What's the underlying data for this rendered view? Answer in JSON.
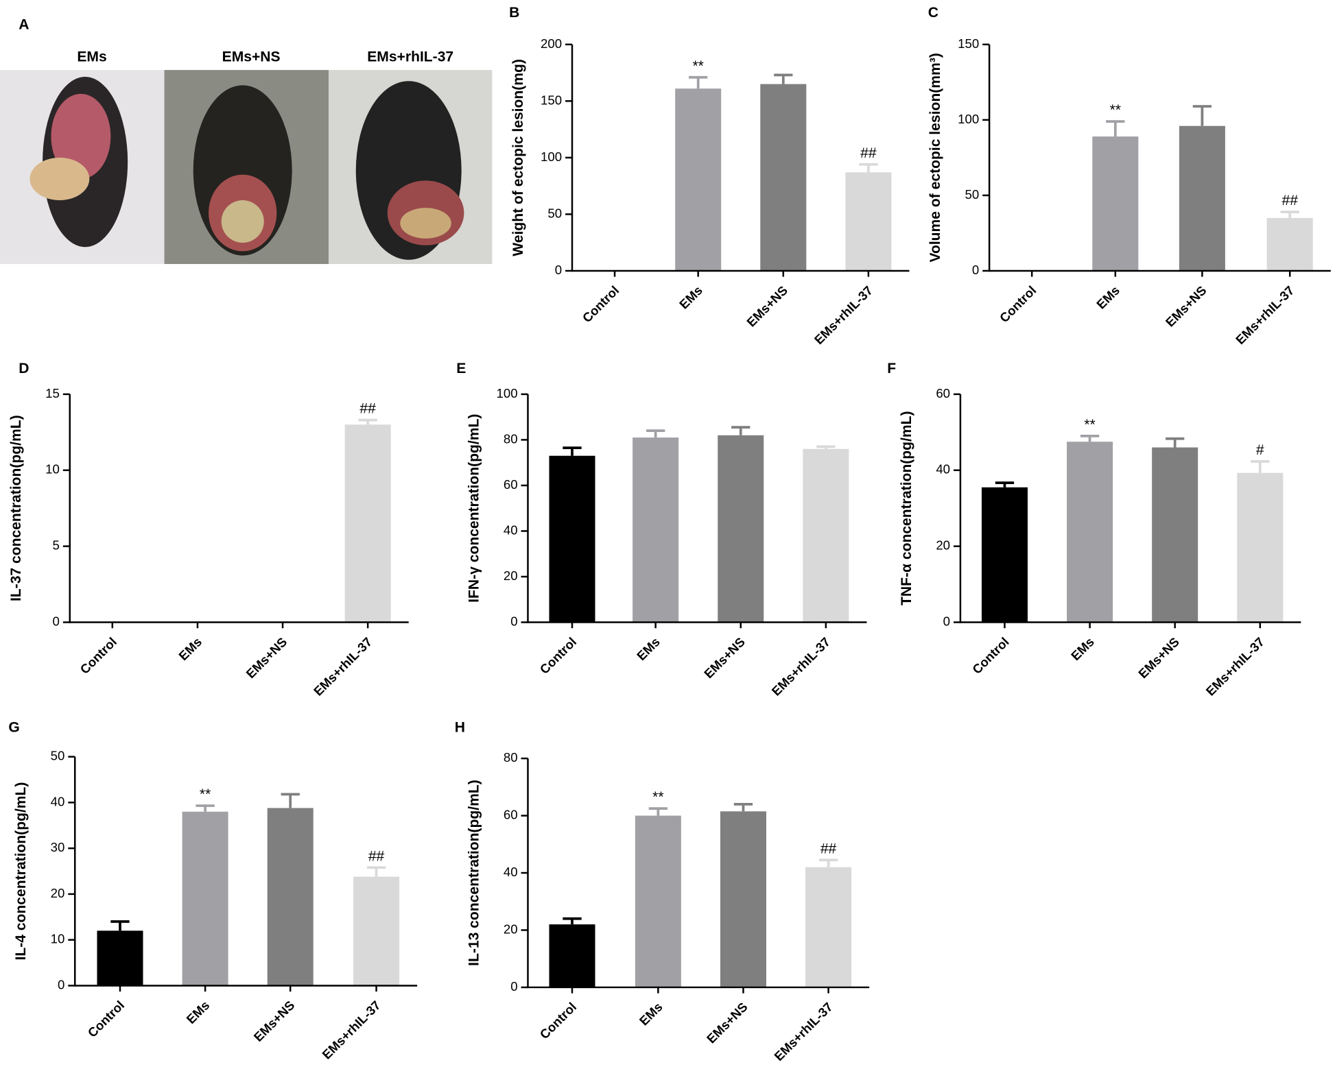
{
  "panel_a": {
    "label": "A",
    "captions": [
      "EMs",
      "EMs+NS",
      "EMs+rhIL-37"
    ]
  },
  "chart_data": [
    {
      "type": "bar",
      "panel": "B",
      "ylabel": "Weight of ectopic lesion(mg)",
      "categories": [
        "Control",
        "EMs",
        "EMs+NS",
        "EMs+rhIL-37"
      ],
      "values": [
        0,
        161,
        165,
        87
      ],
      "errors": [
        null,
        10,
        8,
        7
      ],
      "annotations": [
        null,
        "**",
        null,
        "##"
      ],
      "colors": [
        "#000000",
        "#a0a0a5",
        "#7f7f7f",
        "#d9d9d9"
      ],
      "ylim": [
        0,
        200
      ],
      "yticks": [
        0,
        50,
        100,
        150,
        200
      ]
    },
    {
      "type": "bar",
      "panel": "C",
      "ylabel": "Volume of ectopic lesion(mm³)",
      "categories": [
        "Control",
        "EMs",
        "EMs+NS",
        "EMs+rhIL-37"
      ],
      "values": [
        0,
        89,
        96,
        35
      ],
      "errors": [
        null,
        10,
        13,
        4
      ],
      "annotations": [
        null,
        "**",
        null,
        "##"
      ],
      "colors": [
        "#000000",
        "#a0a0a5",
        "#7f7f7f",
        "#d9d9d9"
      ],
      "ylim": [
        0,
        150
      ],
      "yticks": [
        0,
        50,
        100,
        150
      ]
    },
    {
      "type": "bar",
      "panel": "D",
      "ylabel": "IL-37 concentration(pg/mL)",
      "categories": [
        "Control",
        "EMs",
        "EMs+NS",
        "EMs+rhIL-37"
      ],
      "values": [
        0,
        0,
        0,
        13
      ],
      "errors": [
        null,
        null,
        null,
        0.3
      ],
      "annotations": [
        null,
        null,
        null,
        "##"
      ],
      "colors": [
        "#000000",
        "#a0a0a5",
        "#7f7f7f",
        "#d9d9d9"
      ],
      "ylim": [
        0,
        15
      ],
      "yticks": [
        0,
        5,
        10,
        15
      ]
    },
    {
      "type": "bar",
      "panel": "E",
      "ylabel": "IFN-γ concentration(pg/mL)",
      "categories": [
        "Control",
        "EMs",
        "EMs+NS",
        "EMs+rhIL-37"
      ],
      "values": [
        73,
        81,
        82,
        76
      ],
      "errors": [
        3.5,
        3,
        3.5,
        1
      ],
      "annotations": [
        null,
        null,
        null,
        null
      ],
      "colors": [
        "#000000",
        "#a0a0a5",
        "#7f7f7f",
        "#d9d9d9"
      ],
      "ylim": [
        0,
        100
      ],
      "yticks": [
        0,
        20,
        40,
        60,
        80,
        100
      ]
    },
    {
      "type": "bar",
      "panel": "F",
      "ylabel": "TNF-α concentration(pg/mL)",
      "categories": [
        "Control",
        "EMs",
        "EMs+NS",
        "EMs+rhIL-37"
      ],
      "values": [
        35.5,
        47.5,
        46,
        39.3
      ],
      "errors": [
        1.2,
        1.5,
        2.3,
        3
      ],
      "annotations": [
        null,
        "**",
        null,
        "#"
      ],
      "colors": [
        "#000000",
        "#a0a0a5",
        "#7f7f7f",
        "#d9d9d9"
      ],
      "ylim": [
        0,
        60
      ],
      "yticks": [
        0,
        20,
        40,
        60
      ]
    },
    {
      "type": "bar",
      "panel": "G",
      "ylabel": "IL-4 concentration(pg/mL)",
      "categories": [
        "Control",
        "EMs",
        "EMs+NS",
        "EMs+rhIL-37"
      ],
      "values": [
        12,
        38,
        38.8,
        23.8
      ],
      "errors": [
        2,
        1.3,
        3,
        2
      ],
      "annotations": [
        null,
        "**",
        null,
        "##"
      ],
      "colors": [
        "#000000",
        "#a0a0a5",
        "#7f7f7f",
        "#d9d9d9"
      ],
      "ylim": [
        0,
        50
      ],
      "yticks": [
        0,
        10,
        20,
        30,
        40,
        50
      ]
    },
    {
      "type": "bar",
      "panel": "H",
      "ylabel": "IL-13 concentration(pg/mL)",
      "categories": [
        "Control",
        "EMs",
        "EMs+NS",
        "EMs+rhIL-37"
      ],
      "values": [
        22,
        60,
        61.5,
        42
      ],
      "errors": [
        2,
        2.5,
        2.5,
        2.5
      ],
      "annotations": [
        null,
        "**",
        null,
        "##"
      ],
      "colors": [
        "#000000",
        "#a0a0a5",
        "#7f7f7f",
        "#d9d9d9"
      ],
      "ylim": [
        0,
        80
      ],
      "yticks": [
        0,
        20,
        40,
        60,
        80
      ]
    }
  ]
}
